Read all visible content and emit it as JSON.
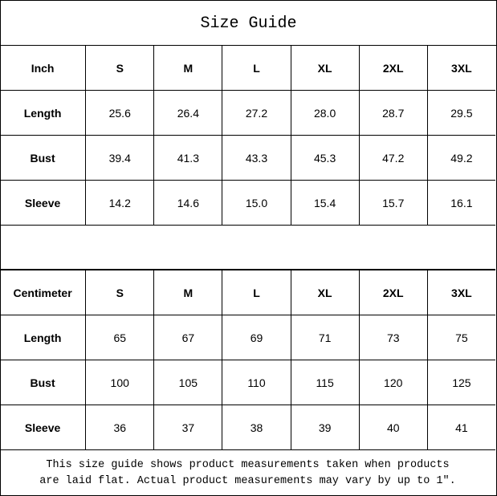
{
  "title": "Size Guide",
  "sizes": [
    "S",
    "M",
    "L",
    "XL",
    "2XL",
    "3XL"
  ],
  "inch_table": {
    "unit_label": "Inch",
    "rows": [
      {
        "label": "Length",
        "values": [
          "25.6",
          "26.4",
          "27.2",
          "28.0",
          "28.7",
          "29.5"
        ]
      },
      {
        "label": "Bust",
        "values": [
          "39.4",
          "41.3",
          "43.3",
          "45.3",
          "47.2",
          "49.2"
        ]
      },
      {
        "label": "Sleeve",
        "values": [
          "14.2",
          "14.6",
          "15.0",
          "15.4",
          "15.7",
          "16.1"
        ]
      }
    ]
  },
  "cm_table": {
    "unit_label": "Centimeter",
    "rows": [
      {
        "label": "Length",
        "values": [
          "65",
          "67",
          "69",
          "71",
          "73",
          "75"
        ]
      },
      {
        "label": "Bust",
        "values": [
          "100",
          "105",
          "110",
          "115",
          "120",
          "125"
        ]
      },
      {
        "label": "Sleeve",
        "values": [
          "36",
          "37",
          "38",
          "39",
          "40",
          "41"
        ]
      }
    ]
  },
  "note": {
    "line1": "This size guide shows product measurements taken when products",
    "line2": "are laid flat. Actual product measurements may vary by up to 1″."
  }
}
